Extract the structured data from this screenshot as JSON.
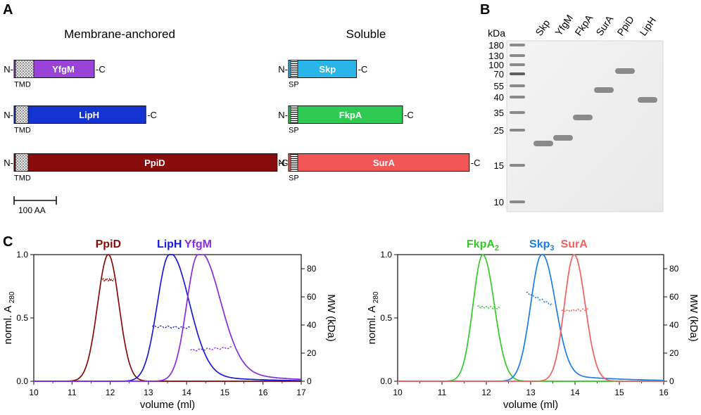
{
  "panel_labels": {
    "a": "A",
    "b": "B",
    "c": "C"
  },
  "panel_a": {
    "headers": {
      "membrane": "Membrane-anchored",
      "soluble": "Soluble"
    },
    "n_term": "N-",
    "c_term": "-C",
    "tmd_label": "TMD",
    "sp_label": "SP",
    "scale_bar_label": "100 AA",
    "proteins": [
      {
        "name": "YfgM",
        "group": "membrane",
        "length_aa": 190,
        "color": "#9b43d9",
        "tag": "TMD"
      },
      {
        "name": "LipH",
        "group": "membrane",
        "length_aa": 312,
        "color": "#1533d1",
        "tag": "TMD"
      },
      {
        "name": "PpiD",
        "group": "membrane",
        "length_aa": 623,
        "color": "#8a0b0b",
        "tag": "TMD"
      },
      {
        "name": "Skp",
        "group": "soluble",
        "length_aa": 161,
        "color": "#29b4ea",
        "tag": "SP"
      },
      {
        "name": "FkpA",
        "group": "soluble",
        "length_aa": 270,
        "color": "#2ecb52",
        "tag": "SP"
      },
      {
        "name": "SurA",
        "group": "soluble",
        "length_aa": 428,
        "color": "#f25656",
        "tag": "SP"
      }
    ]
  },
  "panel_b": {
    "unit": "kDa",
    "markers": [
      "180",
      "130",
      "100",
      "70",
      "55",
      "40",
      "35",
      "25",
      "15",
      "10"
    ],
    "lanes": [
      "Skp",
      "YfgM",
      "FkpA",
      "SurA",
      "PpiD",
      "LipH"
    ]
  },
  "chart_data": [
    {
      "type": "line",
      "xlabel": "volume (ml)",
      "ylabel": "norml. A",
      "ylabel_sub": "280",
      "y2label": "MW (kDa)",
      "xlim": [
        10,
        17
      ],
      "ylim": [
        0,
        1
      ],
      "y2lim": [
        0,
        90
      ],
      "xticks": [
        "10",
        "11",
        "12",
        "13",
        "14",
        "15",
        "16",
        "17"
      ],
      "yticks": [
        "0.0",
        "0.5",
        "1.0"
      ],
      "y2ticks": [
        "0",
        "20",
        "40",
        "60",
        "80"
      ],
      "series": [
        {
          "name": "PpiD",
          "color": "#8a0b0b",
          "peak": 11.95,
          "sigma_left": 0.28,
          "sigma_right": 0.28,
          "tail": 0,
          "mw": {
            "from": 11.8,
            "to": 12.1,
            "values": [
              72,
              72
            ]
          }
        },
        {
          "name": "LipH",
          "color": "#1a1add",
          "peak": 13.55,
          "sigma_left": 0.32,
          "sigma_right": 0.5,
          "tail": 0.06,
          "mw": {
            "from": 13.1,
            "to": 14.1,
            "values": [
              39,
              38
            ]
          }
        },
        {
          "name": "YfgM",
          "color": "#8a2be2",
          "peak": 14.3,
          "sigma_left": 0.3,
          "sigma_right": 0.55,
          "tail": 0.1,
          "mw": {
            "from": 14.1,
            "to": 15.2,
            "values": [
              22,
              24
            ]
          }
        }
      ]
    },
    {
      "type": "line",
      "xlabel": "volume (ml)",
      "ylabel": "norml. A",
      "ylabel_sub": "280",
      "y2label": "MW (kDa)",
      "xlim": [
        10,
        16
      ],
      "ylim": [
        0,
        1
      ],
      "y2lim": [
        0,
        90
      ],
      "xticks": [
        "10",
        "11",
        "12",
        "13",
        "14",
        "15",
        "16"
      ],
      "yticks": [
        "0.0",
        "0.5",
        "1.0"
      ],
      "y2ticks": [
        "0",
        "20",
        "40",
        "60",
        "80"
      ],
      "series": [
        {
          "name": "FkpA",
          "sub": "2",
          "color": "#33c92a",
          "peak": 11.92,
          "sigma_left": 0.22,
          "sigma_right": 0.26,
          "tail": 0,
          "mw": {
            "from": 11.8,
            "to": 12.3,
            "values": [
              53,
              52
            ]
          }
        },
        {
          "name": "Skp",
          "sub": "3",
          "color": "#1c7de6",
          "peak": 13.25,
          "sigma_left": 0.25,
          "sigma_right": 0.3,
          "tail": 0.05,
          "mw": {
            "from": 12.9,
            "to": 13.5,
            "values": [
              63,
              54
            ]
          }
        },
        {
          "name": "SurA",
          "sub": "",
          "color": "#f06060",
          "peak": 13.98,
          "sigma_left": 0.22,
          "sigma_right": 0.25,
          "tail": 0,
          "mw": {
            "from": 13.7,
            "to": 14.3,
            "values": [
              50,
              51
            ]
          }
        }
      ]
    }
  ]
}
